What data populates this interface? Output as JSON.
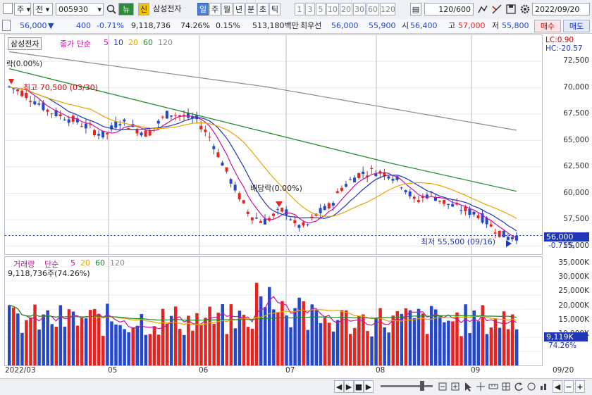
{
  "toolbar": {
    "type_label": "주",
    "market_label": "전",
    "code": "005930",
    "name_btn": "뉴",
    "signal_btn": "신",
    "name": "삼성전자",
    "periods": [
      "일",
      "주",
      "월",
      "년",
      "분",
      "초",
      "틱"
    ],
    "active_period": "일",
    "intervals": [
      "1",
      "3",
      "5",
      "10",
      "20",
      "30",
      "60",
      "120"
    ],
    "count_value": "120",
    "count_max": "/600",
    "date": "2022/09/20"
  },
  "quote": {
    "price": "56,000",
    "change": "400",
    "change_pct": "-0.71%",
    "volume": "9,118,736",
    "vol_ratio": "74.26%",
    "turnover": "0.15%",
    "amount": "513,180백만",
    "best_ask_label": "최우선",
    "best_ask": "56,000",
    "best_bid": "55,900",
    "open_label": "시",
    "open": "56,400",
    "high_label": "고",
    "high": "57,000",
    "low_label": "저",
    "low": "55,800",
    "buy_label": "매수",
    "sell_label": "매도"
  },
  "legend": {
    "stock": "삼성전자",
    "ma_title": "종가 단순",
    "ma_periods": [
      "5",
      "10",
      "20",
      "60",
      "120"
    ],
    "lc": "LC:0.90",
    "hc": "HC:-20.57",
    "dividend_top": "락(0.00%)",
    "high_text": "최고 70,500 (03/30)",
    "low_text": "최저 55,500 (09/16)",
    "dividend_mid": "배당락(0.00%)",
    "price_tag": "56,000",
    "pct_tag": "-0.71%"
  },
  "volume": {
    "title": "거래량",
    "ma_title": "단순",
    "ma_periods": [
      "5",
      "20",
      "60",
      "120"
    ],
    "today": "9,118,736주(74.26%)",
    "tag": "9,119K",
    "tag_pct": "74.26%"
  },
  "price_axis": [
    "72,500",
    "70,000",
    "67,500",
    "65,000",
    "62,500",
    "60,000",
    "57,500",
    "55,000"
  ],
  "volume_axis": [
    "35,000K",
    "30,000K",
    "25,000K",
    "20,000K",
    "15,000K",
    "10,000K"
  ],
  "x_axis": [
    "2022/03",
    "05",
    "06",
    "07",
    "08",
    "09"
  ],
  "x_end": "09/20",
  "colors": {
    "up": "#e8231f",
    "down": "#2548c8",
    "ma5": "#c8119e",
    "ma10": "#1f36b8",
    "ma20": "#e8a400",
    "ma60": "#1d8c2a",
    "ma120": "#8a8a8a"
  }
}
